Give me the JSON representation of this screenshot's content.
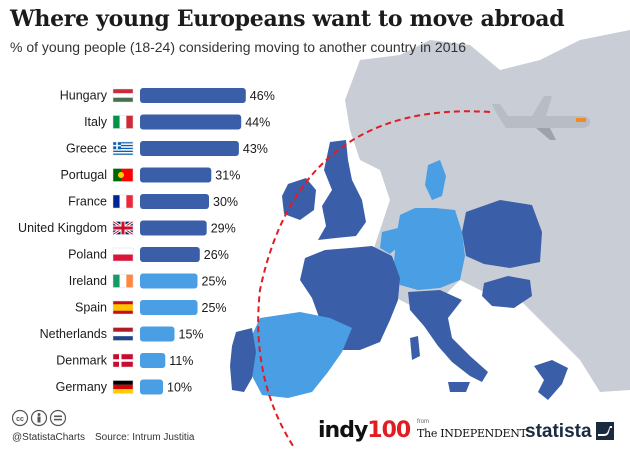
{
  "title": "Where young Europeans want to move abroad",
  "subtitle": "% of young people (18-24) considering moving to another country in 2016",
  "chart_data": {
    "type": "bar",
    "orientation": "horizontal",
    "title": "Where young Europeans want to move abroad",
    "subtitle": "% of young people (18-24) considering moving to another country in 2016",
    "categories": [
      "Hungary",
      "Italy",
      "Greece",
      "Portugal",
      "France",
      "United Kingdom",
      "Poland",
      "Ireland",
      "Spain",
      "Netherlands",
      "Denmark",
      "Germany"
    ],
    "values": [
      46,
      44,
      43,
      31,
      30,
      29,
      26,
      25,
      25,
      15,
      11,
      10
    ],
    "value_labels": [
      "46%",
      "44%",
      "43%",
      "31%",
      "30%",
      "29%",
      "26%",
      "25%",
      "25%",
      "15%",
      "11%",
      "10%"
    ],
    "xlabel": "",
    "ylabel": "",
    "colors": {
      "high": "#3a5fa8",
      "low": "#4a9ee3",
      "high_threshold": 25
    }
  },
  "footer": {
    "handle": "@StatistaCharts",
    "source": "Source: Intrum Justitia",
    "indy_word": "indy",
    "indy_num": "100",
    "from_label": "from",
    "independent_label": "The INDEPENDENT",
    "statista_label": "statista"
  }
}
